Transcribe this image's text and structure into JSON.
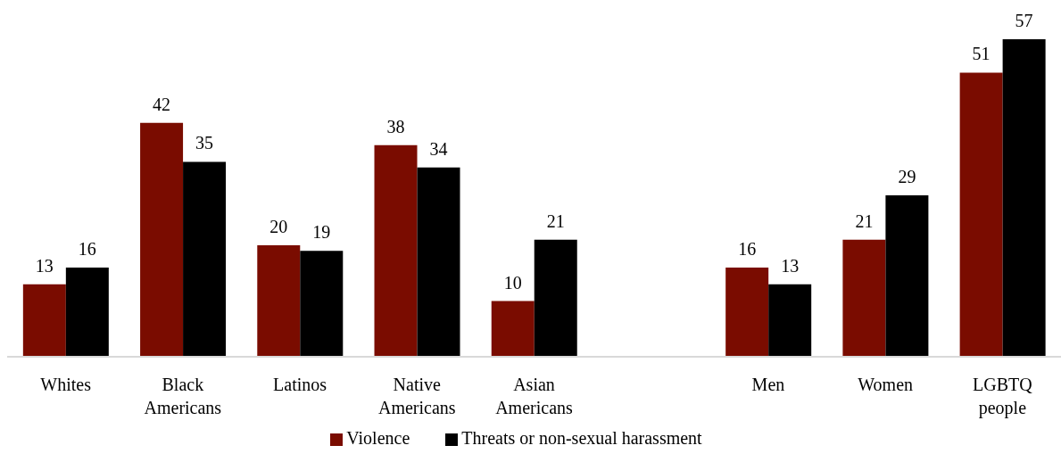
{
  "chart_data": {
    "type": "bar",
    "categories": [
      "Whites",
      "Black Americans",
      "Latinos",
      "Native Americans",
      "Asian Americans",
      null,
      "Men",
      "Women",
      "LGBTQ people"
    ],
    "series": [
      {
        "name": "Violence",
        "color": "#7a0c00",
        "values": [
          13,
          42,
          20,
          38,
          10,
          null,
          16,
          21,
          51
        ]
      },
      {
        "name": "Threats or non-sexual harassment",
        "color": "#000000",
        "values": [
          16,
          35,
          19,
          34,
          21,
          null,
          13,
          29,
          57
        ]
      }
    ],
    "data_labels": true,
    "legend": "bottom"
  }
}
